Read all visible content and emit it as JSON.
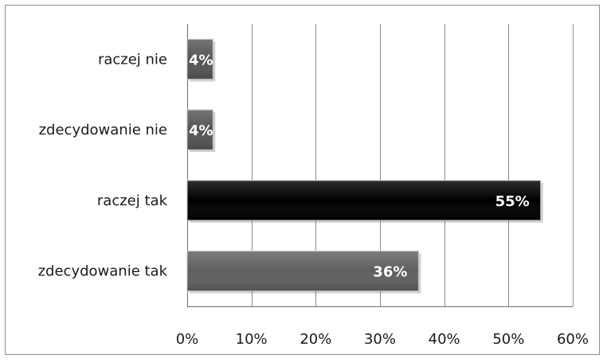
{
  "chart_data": {
    "type": "bar",
    "orientation": "horizontal",
    "categories": [
      "raczej nie",
      "zdecydowanie nie",
      "raczej tak",
      "zdecydowanie tak"
    ],
    "values": [
      4,
      4,
      55,
      36
    ],
    "data_labels": [
      "4%",
      "4%",
      "55%",
      "36%"
    ],
    "bar_colors": [
      "#555555",
      "#555555",
      "#000000",
      "#5f5f5f"
    ],
    "xlim": [
      0,
      60
    ],
    "x_ticks": [
      0,
      10,
      20,
      30,
      40,
      50,
      60
    ],
    "x_tick_labels": [
      "0%",
      "10%",
      "20%",
      "30%",
      "40%",
      "50%",
      "60%"
    ],
    "grid": "vertical",
    "legend": "none",
    "title": "",
    "xlabel": "",
    "ylabel": ""
  }
}
